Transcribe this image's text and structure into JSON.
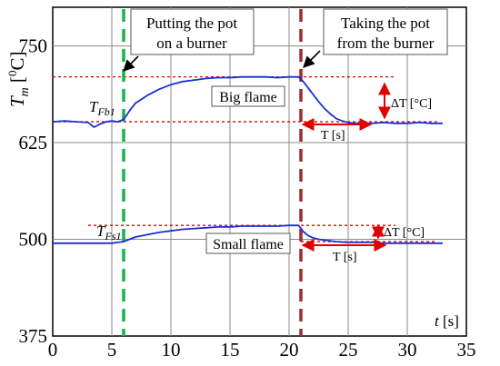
{
  "chart_data": {
    "type": "line",
    "xlim": [
      0,
      35
    ],
    "ylim": [
      375,
      800
    ],
    "x_ticks": [
      0,
      5,
      10,
      15,
      20,
      25,
      30,
      35
    ],
    "y_ticks": [
      375,
      500,
      625,
      750
    ],
    "xlabel": "t [s]",
    "ylabel": "Tm [0C]",
    "grid": true,
    "colors": {
      "series": "#1a2fd6",
      "ref": "#e00000",
      "green": "#19b34a",
      "brown": "#9b2d2d",
      "arrow": "#e00000"
    },
    "series": [
      {
        "x": [
          0,
          1,
          2,
          3,
          3.5,
          4,
          4.5,
          5,
          5.5,
          6,
          6.5,
          7,
          8,
          9,
          10,
          11,
          12,
          13,
          14,
          15,
          16,
          17,
          18,
          19,
          20,
          20.8,
          21.2,
          21.6,
          22,
          22.5,
          23,
          23.5,
          24,
          24.5,
          25,
          25.5,
          26,
          27,
          28,
          29,
          30,
          31,
          32,
          33
        ],
        "y": [
          652,
          653,
          652,
          651,
          645,
          649,
          652,
          653,
          652,
          655,
          666,
          676,
          686,
          694,
          700,
          704,
          706,
          708,
          709,
          709,
          710,
          710,
          710,
          709,
          710,
          710,
          704,
          696,
          688,
          678,
          669,
          662,
          656,
          653,
          651,
          650,
          650,
          650,
          651,
          650,
          650,
          651,
          650,
          650
        ]
      },
      {
        "x": [
          0,
          1,
          2,
          3,
          4,
          5,
          5.5,
          6,
          6.5,
          7,
          8,
          9,
          10,
          11,
          12,
          13,
          14,
          15,
          16,
          17,
          18,
          19,
          20,
          20.8,
          21.2,
          21.6,
          22,
          22.5,
          23,
          24,
          25,
          26,
          27,
          28,
          29,
          30,
          31,
          32,
          33
        ],
        "y": [
          495,
          495,
          495,
          495,
          495,
          495,
          496,
          497,
          500,
          503,
          506,
          509,
          511,
          513,
          514,
          515,
          516,
          516,
          517,
          517,
          517,
          517,
          518,
          518,
          510,
          505,
          502,
          500,
          499,
          497,
          496,
          496,
          496,
          495,
          495,
          495,
          495,
          495,
          495
        ]
      }
    ],
    "ref_lines": [
      710,
      652,
      518,
      497
    ],
    "vlines": [
      6,
      21
    ]
  },
  "annotations": {
    "put_line1": "Putting the pot",
    "put_line2": "on a burner",
    "take_line1": "Taking the pot",
    "take_line2": "from the burner",
    "big_flame": "Big flame",
    "small_flame": "Small flame",
    "tfb_main": "T",
    "tfb_sub": "Fb1",
    "tfs_main": "T",
    "tfs_sub": "Fs1",
    "dT_big": "ΔT [°C]",
    "dT_small": "ΔT [°C]",
    "T_big": "T [s]",
    "T_small": "T [s]",
    "ylabel_main": "T",
    "ylabel_sub": "m",
    "ylabel_unit_open": " [",
    "ylabel_sup": "0",
    "ylabel_unit_close": "C]",
    "xlabel_var": "t",
    "xlabel_unit": " [s]"
  }
}
